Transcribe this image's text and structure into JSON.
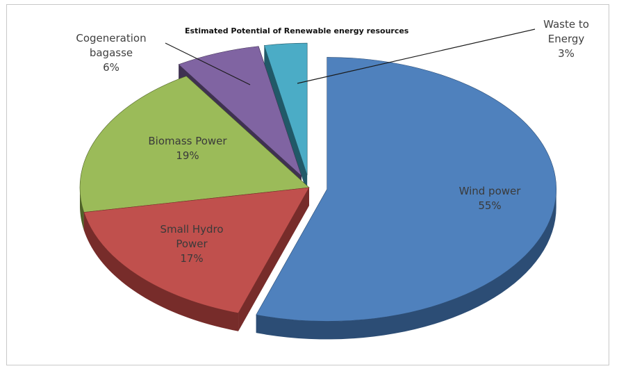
{
  "chart_data": {
    "type": "pie",
    "title": "Estimated Potential of Renewable energy resources",
    "slices": [
      {
        "name": "Wind power",
        "label_lines": [
          "Wind power",
          "55%"
        ],
        "value": 55,
        "color": "#4f81bd",
        "side": "#2c4d75",
        "exploded": true
      },
      {
        "name": "Small Hydro Power",
        "label_lines": [
          "Small Hydro",
          "Power",
          "17%"
        ],
        "value": 17,
        "color": "#c0504d",
        "side": "#772c2a",
        "exploded": false
      },
      {
        "name": "Biomass Power",
        "label_lines": [
          "Biomass Power",
          "19%"
        ],
        "value": 19,
        "color": "#9bbb59",
        "side": "#4f6228",
        "exploded": false
      },
      {
        "name": "Cogeneration bagasse",
        "label_lines": [
          "Cogeneration",
          "bagasse",
          "6%"
        ],
        "value": 6,
        "color": "#8064a2",
        "side": "#3f3151",
        "exploded": true
      },
      {
        "name": "Waste to Energy",
        "label_lines": [
          "Waste to",
          "Energy",
          "3%"
        ],
        "value": 3,
        "color": "#4bacc6",
        "side": "#215968",
        "exploded": true
      }
    ],
    "legend": "none",
    "style": "3d-exploded"
  }
}
